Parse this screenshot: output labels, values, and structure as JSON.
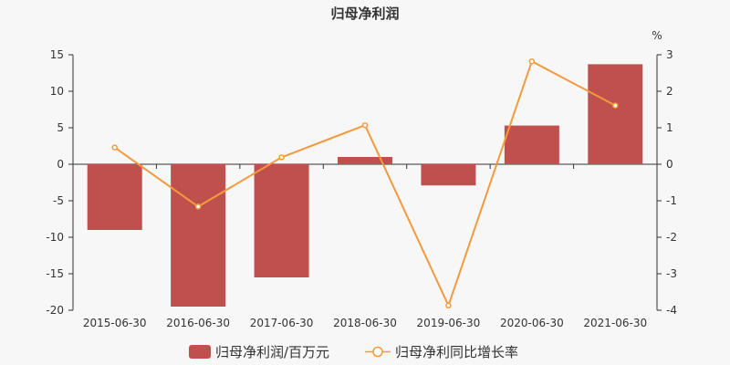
{
  "chart_data": {
    "type": "bar",
    "title": "归母净利润",
    "categories": [
      "2015-06-30",
      "2016-06-30",
      "2017-06-30",
      "2018-06-30",
      "2019-06-30",
      "2020-06-30",
      "2021-06-30"
    ],
    "series": [
      {
        "name": "归母净利润/百万元",
        "type": "bar",
        "axis": "left",
        "color": "#c0504d",
        "values": [
          -9.0,
          -19.5,
          -15.5,
          1.0,
          -2.9,
          5.3,
          13.7
        ]
      },
      {
        "name": "归母净利同比增长率",
        "type": "line",
        "axis": "right",
        "color": "#f39a3e",
        "values": [
          0.46,
          -1.16,
          0.19,
          1.07,
          -3.87,
          2.82,
          1.61
        ]
      }
    ],
    "y_left": {
      "ylim": [
        -20,
        15
      ],
      "ticks": [
        "15",
        "10",
        "5",
        "0",
        "-5",
        "-10",
        "-15",
        "-20"
      ]
    },
    "y_right": {
      "label": "%",
      "ylim": [
        -4,
        3
      ],
      "ticks": [
        "3",
        "2",
        "1",
        "0",
        "-1",
        "-2",
        "-3",
        "-4"
      ]
    },
    "grid": false,
    "legend_position": "bottom"
  }
}
